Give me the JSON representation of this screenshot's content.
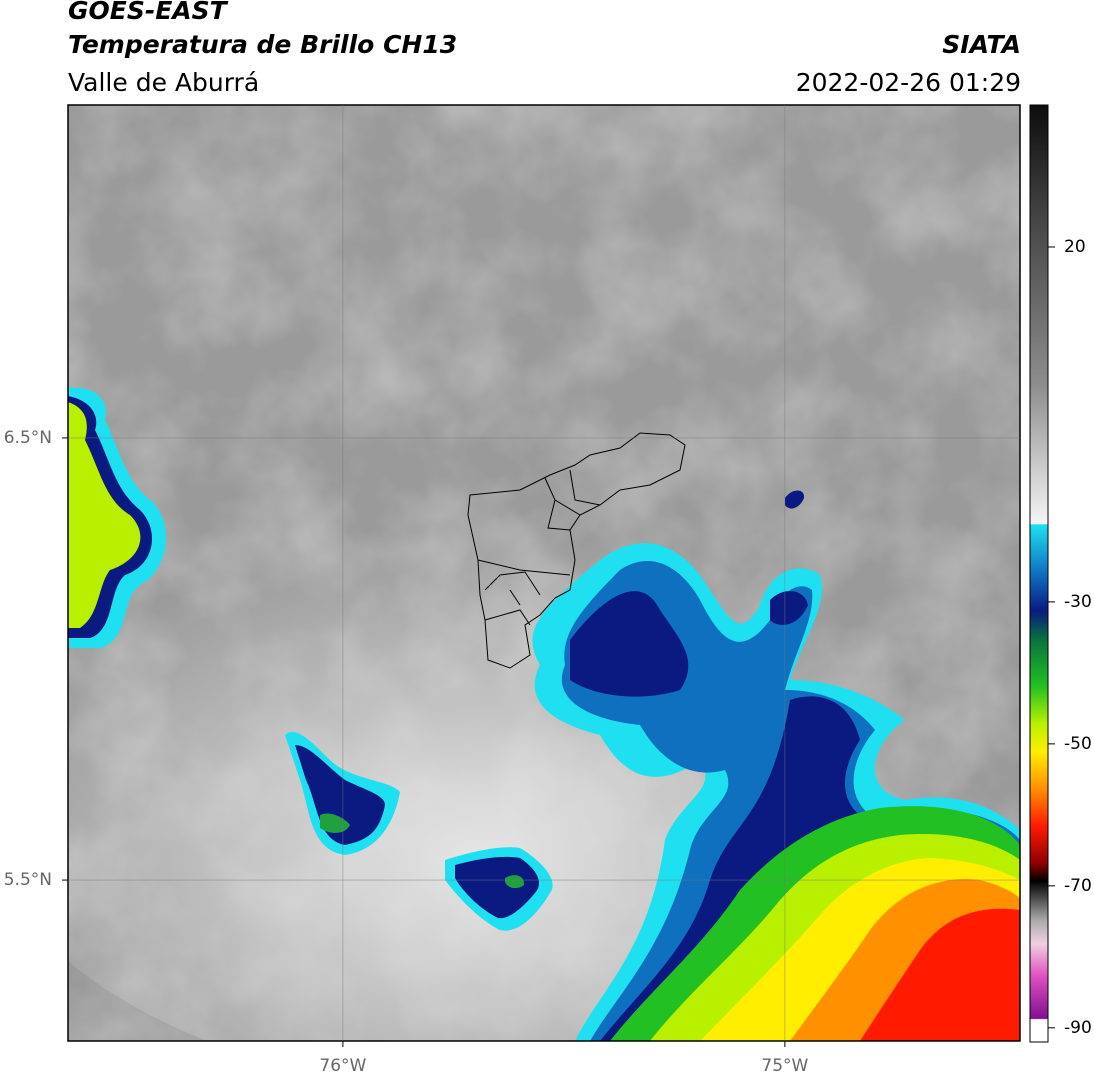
{
  "header": {
    "title": "GOES-EAST",
    "subtitle": "Temperatura de Brillo CH13",
    "region": "Valle de Aburrá",
    "source": "SIATA",
    "timestamp": "2022-02-26 01:29"
  },
  "map": {
    "xlim": [
      -76.622,
      -74.468
    ],
    "ylim": [
      5.136,
      7.253
    ],
    "xticks": [
      {
        "value": -76,
        "label": "76°W"
      },
      {
        "value": -75,
        "label": "75°W"
      }
    ],
    "yticks": [
      {
        "value": 6.5,
        "label": "6.5°N"
      },
      {
        "value": 5.5,
        "label": "5.5°N"
      }
    ],
    "grid": true
  },
  "colorbar": {
    "lim": [
      -92,
      40
    ],
    "ticks": [
      20,
      -30,
      -50,
      -70,
      -90
    ]
  }
}
